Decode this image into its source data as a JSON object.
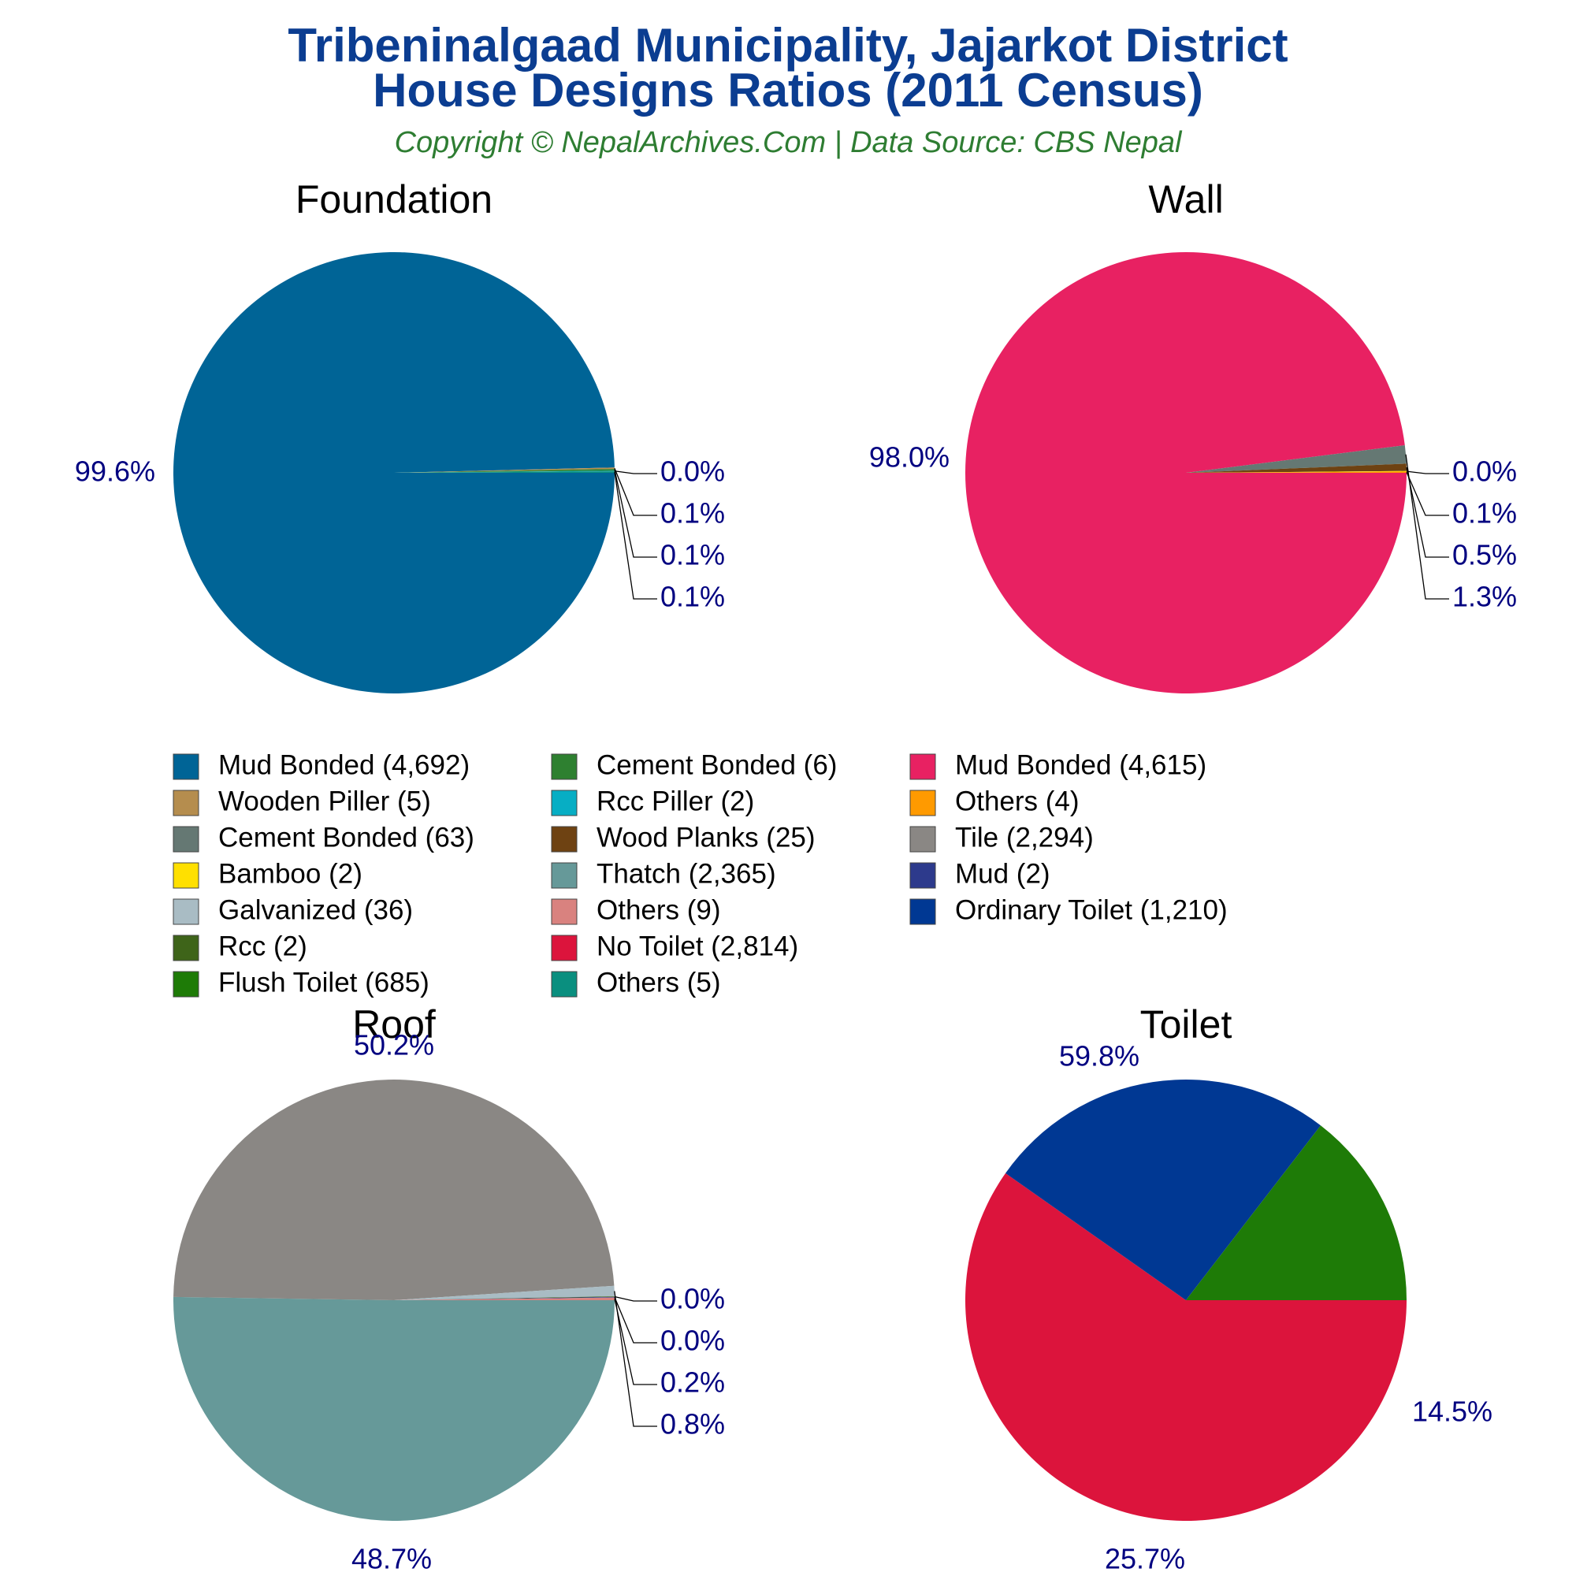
{
  "header": {
    "title_line1": "Tribeninalgaad Municipality, Jajarkot District",
    "title_line2": "House Designs Ratios (2011 Census)",
    "subtitle": "Copyright © NepalArchives.Com | Data Source: CBS Nepal"
  },
  "chart_data": [
    {
      "type": "pie",
      "title": "Foundation",
      "categories": [
        "Mud Bonded",
        "Wooden Piller",
        "Cement Bonded",
        "Rcc Piller",
        "Others"
      ],
      "values": [
        4692,
        5,
        6,
        2,
        5
      ],
      "colors": [
        "#006496",
        "#b58d4e",
        "#2e8030",
        "#07aec4",
        "#0a8f7f"
      ],
      "labels": [
        "99.6%",
        "0.1%",
        "0.1%",
        "0.0%",
        "0.1%"
      ]
    },
    {
      "type": "pie",
      "title": "Wall",
      "categories": [
        "Mud Bonded",
        "Cement Bonded",
        "Wood Planks",
        "Bamboo",
        "Others"
      ],
      "values": [
        4615,
        63,
        25,
        2,
        4
      ],
      "colors": [
        "#e82162",
        "#657873",
        "#6e4212",
        "#ffe000",
        "#ff9a00"
      ],
      "labels": [
        "98.0%",
        "1.3%",
        "0.5%",
        "0.0%",
        "0.1%"
      ]
    },
    {
      "type": "pie",
      "title": "Roof",
      "categories": [
        "Thatch",
        "Tile",
        "Galvanized",
        "Rcc",
        "Mud",
        "Others"
      ],
      "values": [
        2365,
        2294,
        36,
        2,
        2,
        9
      ],
      "colors": [
        "#669999",
        "#8a8784",
        "#a9bcc4",
        "#3e6419",
        "#2d3a8c",
        "#d9827f"
      ],
      "labels": [
        "50.2%",
        "48.7%",
        "0.8%",
        "0.0%",
        "0.0%",
        "0.2%"
      ]
    },
    {
      "type": "pie",
      "title": "Toilet",
      "categories": [
        "No Toilet",
        "Ordinary Toilet",
        "Flush Toilet"
      ],
      "values": [
        2814,
        1210,
        685
      ],
      "colors": [
        "#dc143c",
        "#003893",
        "#1e7b07"
      ],
      "labels": [
        "59.8%",
        "25.7%",
        "14.5%"
      ]
    }
  ],
  "legend": {
    "items": [
      {
        "label": "Mud Bonded (4,692)",
        "color": "#006496"
      },
      {
        "label": "Wooden Piller (5)",
        "color": "#b58d4e"
      },
      {
        "label": "Cement Bonded (63)",
        "color": "#657873"
      },
      {
        "label": "Bamboo (2)",
        "color": "#ffe000"
      },
      {
        "label": "Galvanized (36)",
        "color": "#a9bcc4"
      },
      {
        "label": "Rcc (2)",
        "color": "#3e6419"
      },
      {
        "label": "Flush Toilet (685)",
        "color": "#1e7b07"
      },
      {
        "label": "Cement Bonded (6)",
        "color": "#2e8030"
      },
      {
        "label": "Rcc Piller (2)",
        "color": "#07aec4"
      },
      {
        "label": "Wood Planks (25)",
        "color": "#6e4212"
      },
      {
        "label": "Thatch (2,365)",
        "color": "#669999"
      },
      {
        "label": "Others (9)",
        "color": "#d9827f"
      },
      {
        "label": "No Toilet (2,814)",
        "color": "#dc143c"
      },
      {
        "label": "Others (5)",
        "color": "#0a8f7f"
      },
      {
        "label": "Mud Bonded (4,615)",
        "color": "#e82162"
      },
      {
        "label": "Others (4)",
        "color": "#ff9a00"
      },
      {
        "label": "Tile (2,294)",
        "color": "#8a8784"
      },
      {
        "label": "Mud (2)",
        "color": "#2d3a8c"
      },
      {
        "label": "Ordinary Toilet (1,210)",
        "color": "#003893"
      }
    ]
  }
}
